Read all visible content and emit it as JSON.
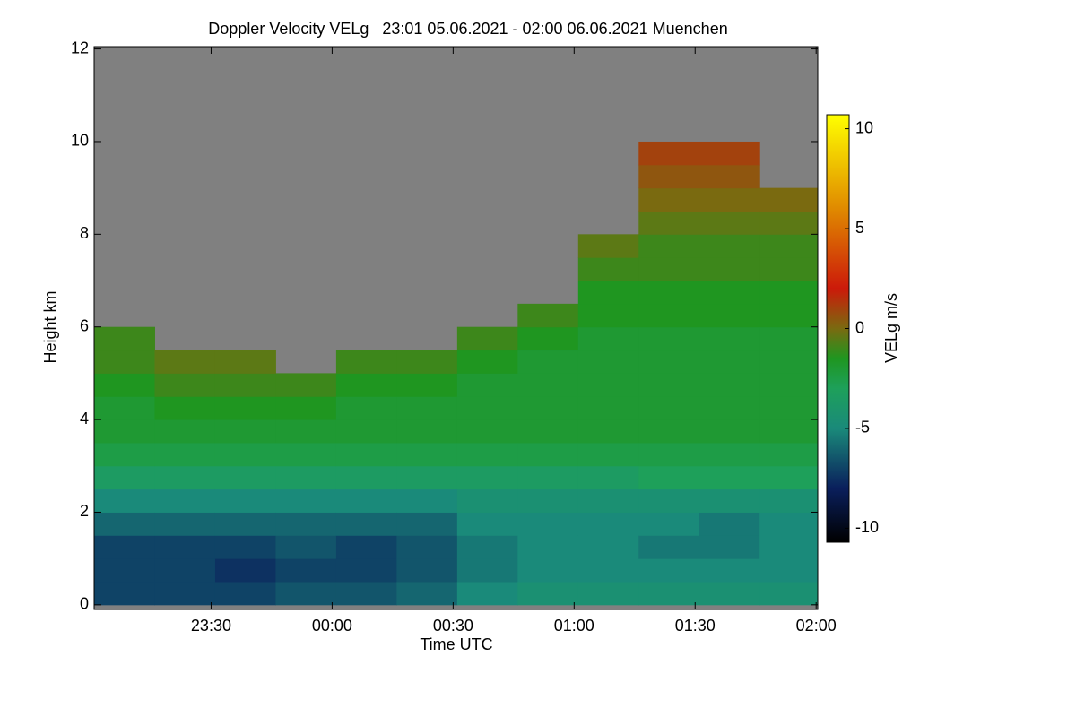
{
  "chart_data": {
    "type": "heatmap",
    "title": "Doppler Velocity VELg   23:01 05.06.2021 - 02:00 06.06.2021 Muenchen",
    "x_label": "Time UTC",
    "y_label": "Height km",
    "colorbar_label": "VELg m/s",
    "background_color": "#808080",
    "xlim": [
      1,
      180.4
    ],
    "xticks": [
      {
        "value": 30,
        "label": "23:30"
      },
      {
        "value": 60,
        "label": "00:00"
      },
      {
        "value": 90,
        "label": "00:30"
      },
      {
        "value": 120,
        "label": "01:00"
      },
      {
        "value": 150,
        "label": "01:30"
      },
      {
        "value": 180,
        "label": "02:00"
      }
    ],
    "ylim": [
      -0.1,
      12.05
    ],
    "yticks": [
      0,
      2,
      4,
      6,
      8,
      10,
      12
    ],
    "zlim": [
      -10.7,
      10.7
    ],
    "zticks": [
      -10,
      -5,
      0,
      5,
      10
    ],
    "colorscale": [
      [
        -10.7,
        "#000000"
      ],
      [
        -8,
        "#0a1f5c"
      ],
      [
        -5,
        "#1a8a7a"
      ],
      [
        -3,
        "#1ea05a"
      ],
      [
        -1.5,
        "#1f9620"
      ],
      [
        0,
        "#7a6a10"
      ],
      [
        2,
        "#cc1a0a"
      ],
      [
        6,
        "#e08a00"
      ],
      [
        10.7,
        "#ffff00"
      ]
    ],
    "xbins": [
      1,
      16,
      31,
      46,
      61,
      76,
      91,
      106,
      121,
      136,
      151,
      166,
      180.4
    ],
    "ybins": [
      0,
      0.5,
      1,
      1.5,
      2,
      2.5,
      3,
      3.5,
      4,
      4.5,
      5,
      5.5,
      6,
      6.5,
      7,
      7.5,
      8,
      8.5,
      9,
      9.5,
      10
    ],
    "values": [
      [
        -7,
        -7,
        -7,
        -6,
        -5,
        -3.5,
        -2.5,
        -2,
        -2,
        -1.5,
        -1,
        -1,
        null,
        null,
        null,
        null,
        null,
        null,
        null,
        null
      ],
      [
        -7,
        -7,
        -7,
        -6,
        -5,
        -3.5,
        -2.5,
        -2,
        -1.5,
        -1,
        -0.5,
        null,
        null,
        null,
        null,
        null,
        null,
        null,
        null,
        null
      ],
      [
        -7,
        -7.5,
        -7,
        -6,
        -5,
        -3.5,
        -2.5,
        -2,
        -1.5,
        -1,
        -0.5,
        null,
        null,
        null,
        null,
        null,
        null,
        null,
        null,
        null
      ],
      [
        -6.5,
        -7,
        -6.5,
        -6,
        -5,
        -3.5,
        -2.5,
        -2,
        -1.5,
        -1,
        null,
        null,
        null,
        null,
        null,
        null,
        null,
        null,
        null,
        null
      ],
      [
        -6.5,
        -7,
        -7,
        -6,
        -5,
        -3.5,
        -2.5,
        -2,
        -2,
        -1.5,
        -1,
        null,
        null,
        null,
        null,
        null,
        null,
        null,
        null,
        null
      ],
      [
        -6,
        -6.5,
        -6.5,
        -6,
        -5,
        -3.5,
        -2.5,
        -2,
        -2,
        -1.5,
        -1,
        null,
        null,
        null,
        null,
        null,
        null,
        null,
        null,
        null
      ],
      [
        -5,
        -5.5,
        -5.5,
        -5,
        -4.5,
        -3.5,
        -2.5,
        -2,
        -2,
        -2,
        -1.5,
        -1,
        null,
        null,
        null,
        null,
        null,
        null,
        null,
        null
      ],
      [
        -4.5,
        -5,
        -5,
        -5,
        -4.5,
        -3.5,
        -2.5,
        -2,
        -2,
        -2,
        -2,
        -1.5,
        -1,
        null,
        null,
        null,
        null,
        null,
        null,
        null
      ],
      [
        -4.5,
        -5,
        -5,
        -5,
        -4.5,
        -3.5,
        -2.5,
        -2,
        -2,
        -2,
        -2,
        -2,
        -1.5,
        -1.5,
        -1,
        -0.5,
        null,
        null,
        null,
        null
      ],
      [
        -4.5,
        -5,
        -5.5,
        -5,
        -4.5,
        -3,
        -2.5,
        -2,
        -2,
        -2,
        -2,
        -2,
        -1.5,
        -1.5,
        -1,
        -1,
        -0.5,
        0,
        0.5,
        1
      ],
      [
        -4.5,
        -5,
        -5.5,
        -5.5,
        -4.5,
        -3,
        -2.5,
        -2,
        -2,
        -2,
        -2,
        -2,
        -1.5,
        -1.5,
        -1,
        -1,
        -0.5,
        0,
        0.5,
        1
      ],
      [
        -4.5,
        -5,
        -5,
        -5,
        -4.5,
        -3,
        -2.5,
        -2,
        -2,
        -2,
        -2,
        -2,
        -1.5,
        -1.5,
        -1,
        -1,
        -0.5,
        0,
        null,
        null
      ]
    ]
  }
}
